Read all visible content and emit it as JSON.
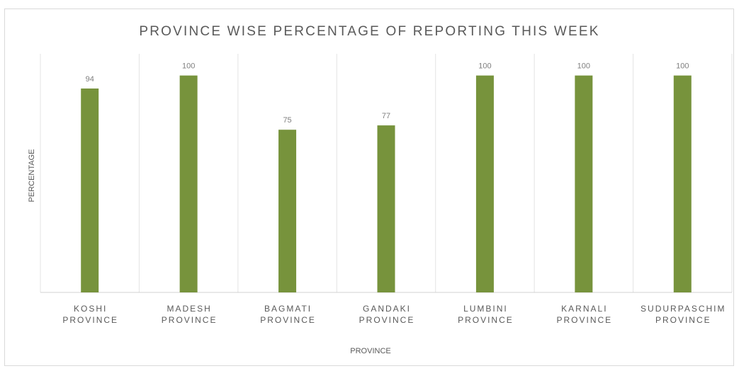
{
  "chart_data": {
    "type": "bar",
    "title": "PROVINCE WISE PERCENTAGE OF REPORTING THIS WEEK",
    "xlabel": "PROVINCE",
    "ylabel": "PERCENTAGE",
    "categories": [
      [
        "KOSHI",
        "PROVINCE"
      ],
      [
        "MADESH",
        "PROVINCE"
      ],
      [
        "BAGMATI",
        "PROVINCE"
      ],
      [
        "GANDAKI",
        "PROVINCE"
      ],
      [
        "LUMBINI",
        "PROVINCE"
      ],
      [
        "KARNALI",
        "PROVINCE"
      ],
      [
        "SUDURPASCHIM",
        "PROVINCE"
      ]
    ],
    "values": [
      94,
      100,
      75,
      77,
      100,
      100,
      100
    ],
    "ylim": [
      0,
      110
    ],
    "grid": "vertical",
    "bar_color": "#77933c"
  }
}
